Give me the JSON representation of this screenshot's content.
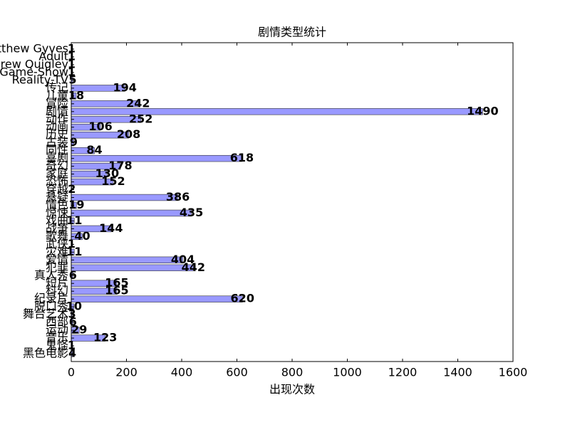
{
  "chart_data": {
    "type": "barh",
    "title": "剧情类型统计",
    "xlabel": "出现次数",
    "categories": [
      "Matthew Gyves",
      "Adult",
      "Andrew Quigley",
      "Game-Show",
      "Reality-TV",
      "传记",
      "儿童",
      "冒险",
      "剧情",
      "动作",
      "动画",
      "历史",
      "古装",
      "同性",
      "喜剧",
      "奇幻",
      "家庭",
      "恐怖",
      "穿越",
      "悬疑",
      "情色",
      "惊悚",
      "戏曲",
      "战争",
      "歌舞",
      "武侠",
      "灾难",
      "爱情",
      "犯罪",
      "真人秀",
      "短片",
      "科幻",
      "纪录片",
      "脱口秀",
      "舞台艺术",
      "西部",
      "运动",
      "音乐",
      "鬼怪",
      "黑色电影"
    ],
    "values": [
      1,
      1,
      1,
      1,
      5,
      194,
      18,
      242,
      1490,
      252,
      106,
      208,
      9,
      84,
      618,
      178,
      130,
      152,
      2,
      386,
      19,
      435,
      11,
      144,
      40,
      1,
      11,
      404,
      442,
      6,
      165,
      165,
      620,
      10,
      3,
      6,
      29,
      123,
      1,
      4
    ],
    "color": "#9999ff",
    "xlim": [
      0,
      1600
    ],
    "xticks": [
      0,
      200,
      400,
      600,
      800,
      1000,
      1200,
      1400,
      1600
    ]
  }
}
